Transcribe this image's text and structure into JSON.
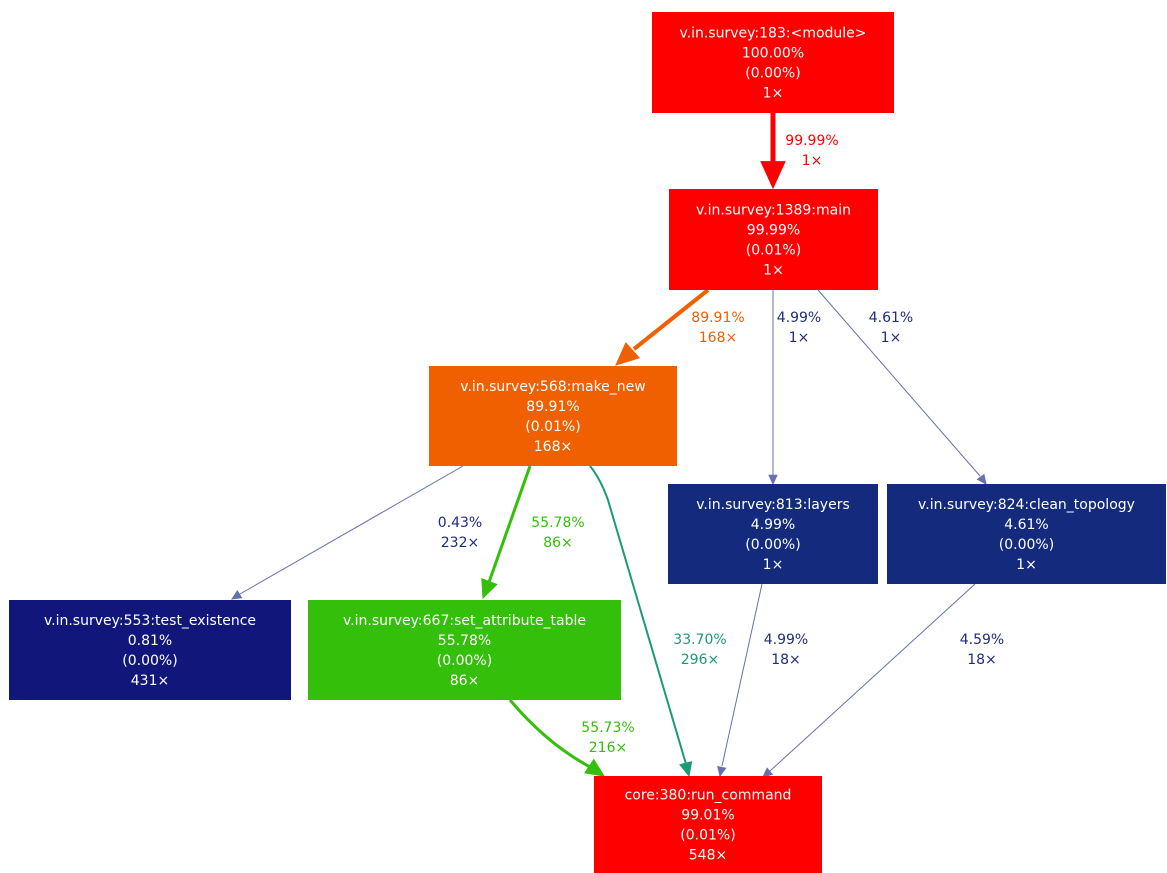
{
  "colors": {
    "red": "#ff0000",
    "orange": "#f06000",
    "green": "#33bf0a",
    "teal": "#1a9a77",
    "navy": "#142b7d",
    "dark_navy": "#10167a",
    "edge_navy": "#6671b0",
    "label_navy": "#1f2d7c",
    "white": "#ffffff"
  },
  "nodes": [
    {
      "id": "module",
      "fill": "#ff0000",
      "lines": [
        "v.in.survey:183:<module>",
        "100.00%",
        "(0.00%)",
        "1×"
      ]
    },
    {
      "id": "main",
      "fill": "#ff0000",
      "lines": [
        "v.in.survey:1389:main",
        "99.99%",
        "(0.01%)",
        "1×"
      ]
    },
    {
      "id": "make_new",
      "fill": "#f06000",
      "lines": [
        "v.in.survey:568:make_new",
        "89.91%",
        "(0.01%)",
        "168×"
      ]
    },
    {
      "id": "layers",
      "fill": "#142b7d",
      "lines": [
        "v.in.survey:813:layers",
        "4.99%",
        "(0.00%)",
        "1×"
      ]
    },
    {
      "id": "clean_topology",
      "fill": "#142b7d",
      "lines": [
        "v.in.survey:824:clean_topology",
        "4.61%",
        "(0.00%)",
        "1×"
      ]
    },
    {
      "id": "test_existence",
      "fill": "#10167a",
      "lines": [
        "v.in.survey:553:test_existence",
        "0.81%",
        "(0.00%)",
        "431×"
      ]
    },
    {
      "id": "set_attribute_table",
      "fill": "#33bf0a",
      "lines": [
        "v.in.survey:667:set_attribute_table",
        "55.78%",
        "(0.00%)",
        "86×"
      ]
    },
    {
      "id": "run_command",
      "fill": "#ff0000",
      "lines": [
        "core:380:run_command",
        "99.01%",
        "(0.01%)",
        "548×"
      ]
    }
  ],
  "edges": [
    {
      "id": "module-main",
      "from": "module",
      "to": "main",
      "color": "#ff0000",
      "label_color": "#ff0000",
      "lines": [
        "99.99%",
        "1×"
      ]
    },
    {
      "id": "main-make_new",
      "from": "main",
      "to": "make_new",
      "color": "#f06000",
      "label_color": "#f06000",
      "lines": [
        "89.91%",
        "168×"
      ]
    },
    {
      "id": "main-layers",
      "from": "main",
      "to": "layers",
      "color": "#6671b0",
      "label_color": "#1f2d7c",
      "lines": [
        "4.99%",
        "1×"
      ]
    },
    {
      "id": "main-clean_topology",
      "from": "main",
      "to": "clean_topology",
      "color": "#6671b0",
      "label_color": "#1f2d7c",
      "lines": [
        "4.61%",
        "1×"
      ]
    },
    {
      "id": "make_new-test_existence",
      "from": "make_new",
      "to": "test_existence",
      "color": "#6671b0",
      "label_color": "#1f2d7c",
      "lines": [
        "0.43%",
        "232×"
      ]
    },
    {
      "id": "make_new-set_attribute_table",
      "from": "make_new",
      "to": "set_attribute_table",
      "color": "#33bf0a",
      "label_color": "#33bf0a",
      "lines": [
        "55.78%",
        "86×"
      ]
    },
    {
      "id": "make_new-run_command",
      "from": "make_new",
      "to": "run_command",
      "color": "#1a9a77",
      "label_color": "#1a9a77",
      "lines": [
        "33.70%",
        "296×"
      ]
    },
    {
      "id": "layers-run_command",
      "from": "layers",
      "to": "run_command",
      "color": "#6671b0",
      "label_color": "#1f2d7c",
      "lines": [
        "4.99%",
        "18×"
      ]
    },
    {
      "id": "clean_topology-run_command",
      "from": "clean_topology",
      "to": "run_command",
      "color": "#6671b0",
      "label_color": "#1f2d7c",
      "lines": [
        "4.59%",
        "18×"
      ]
    },
    {
      "id": "set_attribute_table-run_command",
      "from": "set_attribute_table",
      "to": "run_command",
      "color": "#33bf0a",
      "label_color": "#33bf0a",
      "lines": [
        "55.73%",
        "216×"
      ]
    }
  ]
}
